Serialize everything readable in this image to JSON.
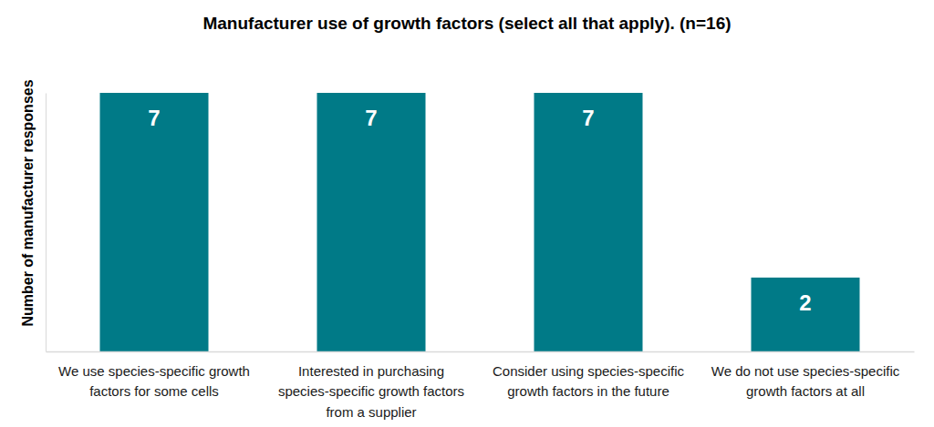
{
  "chart_data": {
    "type": "bar",
    "title": "Manufacturer use of growth factors (select all that apply). (n=16)",
    "y_label": "Number of manufacturer responses",
    "categories": [
      "We use species-specific growth factors for some cells",
      "Interested in purchasing species-specific growth factors from a supplier",
      "Consider using species-specific growth factors in the future",
      "We do not use species-specific growth factors at all"
    ],
    "values": [
      7,
      7,
      7,
      2
    ],
    "color": "#007A87",
    "ylim": [
      0,
      7
    ],
    "yticks": [],
    "data_labels": true,
    "tick_labels": "x"
  }
}
